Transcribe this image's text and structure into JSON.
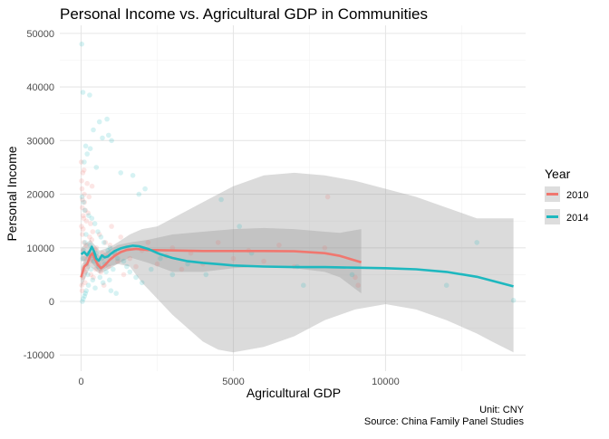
{
  "chart_data": {
    "type": "scatter",
    "title": "Personal Income vs. Agricultural GDP in Communities",
    "xlabel": "Agricultural GDP",
    "ylabel": "Personal Income",
    "xlim": [
      -700,
      14600
    ],
    "ylim": [
      -13000,
      51500
    ],
    "x_ticks": [
      0,
      5000,
      10000
    ],
    "x_tick_labels": [
      "0",
      "5000",
      "10000"
    ],
    "y_ticks": [
      -10000,
      0,
      10000,
      20000,
      30000,
      40000,
      50000
    ],
    "y_tick_labels": [
      "-10000",
      "0",
      "10000",
      "20000",
      "30000",
      "40000",
      "50000"
    ],
    "grid": true,
    "legend": {
      "title": "Year",
      "position": "right",
      "entries": [
        "2010",
        "2014"
      ]
    },
    "caption": [
      "Unit: CNY",
      "Source: China Family Panel Studies"
    ],
    "series": [
      {
        "name": "2010",
        "color": "#f0776f",
        "points": [
          [
            20,
            3000
          ],
          [
            50,
            4500
          ],
          [
            80,
            6000
          ],
          [
            100,
            8000
          ],
          [
            120,
            5500
          ],
          [
            150,
            7000
          ],
          [
            30,
            2000
          ],
          [
            60,
            9500
          ],
          [
            90,
            11000
          ],
          [
            40,
            12500
          ],
          [
            10,
            14000
          ],
          [
            70,
            16000
          ],
          [
            110,
            18500
          ],
          [
            25,
            21000
          ],
          [
            55,
            24000
          ],
          [
            130,
            3500
          ],
          [
            160,
            10500
          ],
          [
            190,
            8500
          ],
          [
            220,
            6500
          ],
          [
            250,
            9000
          ],
          [
            280,
            12000
          ],
          [
            300,
            7500
          ],
          [
            320,
            5000
          ],
          [
            350,
            11500
          ],
          [
            380,
            13000
          ],
          [
            400,
            4500
          ],
          [
            420,
            8000
          ],
          [
            450,
            9500
          ],
          [
            480,
            6000
          ],
          [
            500,
            10000
          ],
          [
            550,
            7000
          ],
          [
            600,
            12500
          ],
          [
            650,
            5500
          ],
          [
            700,
            9000
          ],
          [
            750,
            3000
          ],
          [
            800,
            11000
          ],
          [
            850,
            8500
          ],
          [
            900,
            6500
          ],
          [
            950,
            10500
          ],
          [
            1000,
            14000
          ],
          [
            1100,
            9000
          ],
          [
            1200,
            7500
          ],
          [
            1300,
            12000
          ],
          [
            1400,
            5000
          ],
          [
            1500,
            10000
          ],
          [
            1600,
            8000
          ],
          [
            1800,
            6500
          ],
          [
            2000,
            9500
          ],
          [
            2200,
            11000
          ],
          [
            2500,
            7000
          ],
          [
            2800,
            8500
          ],
          [
            3000,
            10000
          ],
          [
            3300,
            6000
          ],
          [
            3600,
            9000
          ],
          [
            4000,
            7000
          ],
          [
            4500,
            11000
          ],
          [
            5000,
            8000
          ],
          [
            5500,
            9500
          ],
          [
            6000,
            7500
          ],
          [
            6500,
            10500
          ],
          [
            7000,
            6500
          ],
          [
            8000,
            10000
          ],
          [
            8100,
            19500
          ],
          [
            9000,
            4500
          ],
          [
            9100,
            3000
          ],
          [
            5,
            26000
          ],
          [
            15,
            22500
          ],
          [
            35,
            17500
          ],
          [
            45,
            19000
          ],
          [
            65,
            13500
          ],
          [
            85,
            15500
          ],
          [
            95,
            24500
          ],
          [
            105,
            20000
          ],
          [
            140,
            17000
          ],
          [
            175,
            15000
          ],
          [
            200,
            22000
          ],
          [
            230,
            16500
          ],
          [
            260,
            19500
          ],
          [
            310,
            14500
          ],
          [
            360,
            21500
          ]
        ],
        "smooth": [
          [
            0,
            4500
          ],
          [
            100,
            6500
          ],
          [
            200,
            7000
          ],
          [
            300,
            8500
          ],
          [
            380,
            9000
          ],
          [
            450,
            8000
          ],
          [
            550,
            6800
          ],
          [
            650,
            6200
          ],
          [
            750,
            6600
          ],
          [
            850,
            7200
          ],
          [
            950,
            7800
          ],
          [
            1100,
            8500
          ],
          [
            1300,
            9200
          ],
          [
            1500,
            9600
          ],
          [
            1800,
            9800
          ],
          [
            2200,
            9600
          ],
          [
            3000,
            9500
          ],
          [
            4000,
            9400
          ],
          [
            5000,
            9400
          ],
          [
            6000,
            9400
          ],
          [
            7000,
            9350
          ],
          [
            8000,
            9000
          ],
          [
            8500,
            8500
          ],
          [
            9200,
            7300
          ]
        ],
        "band_upper": [
          [
            0,
            6500
          ],
          [
            300,
            10000
          ],
          [
            600,
            8500
          ],
          [
            900,
            9500
          ],
          [
            1200,
            10500
          ],
          [
            1600,
            11000
          ],
          [
            2200,
            11500
          ],
          [
            3000,
            12500
          ],
          [
            4000,
            13000
          ],
          [
            5000,
            13500
          ],
          [
            6000,
            13700
          ],
          [
            7000,
            13500
          ],
          [
            8000,
            13000
          ],
          [
            8500,
            12800
          ],
          [
            9200,
            13500
          ]
        ],
        "band_lower": [
          [
            9200,
            1500
          ],
          [
            8500,
            4500
          ],
          [
            8000,
            5500
          ],
          [
            7000,
            6200
          ],
          [
            6000,
            6500
          ],
          [
            5000,
            6200
          ],
          [
            4000,
            5500
          ],
          [
            3000,
            5500
          ],
          [
            2200,
            7200
          ],
          [
            1600,
            8200
          ],
          [
            1200,
            7000
          ],
          [
            900,
            6000
          ],
          [
            600,
            5200
          ],
          [
            300,
            6500
          ],
          [
            0,
            2500
          ]
        ]
      },
      {
        "name": "2014",
        "color": "#1eb8bf",
        "points": [
          [
            20,
            48000
          ],
          [
            60,
            39000
          ],
          [
            280,
            38500
          ],
          [
            850,
            34000
          ],
          [
            600,
            33500
          ],
          [
            400,
            32000
          ],
          [
            900,
            31000
          ],
          [
            700,
            30500
          ],
          [
            150,
            29000
          ],
          [
            300,
            28500
          ],
          [
            1000,
            30000
          ],
          [
            200,
            27500
          ],
          [
            100,
            26000
          ],
          [
            500,
            25000
          ],
          [
            1300,
            24000
          ],
          [
            1700,
            23500
          ],
          [
            2100,
            21000
          ],
          [
            1900,
            20000
          ],
          [
            30,
            19500
          ],
          [
            80,
            18500
          ],
          [
            120,
            17000
          ],
          [
            250,
            16000
          ],
          [
            350,
            15500
          ],
          [
            450,
            14500
          ],
          [
            550,
            13000
          ],
          [
            650,
            12000
          ],
          [
            750,
            11000
          ],
          [
            950,
            10000
          ],
          [
            1100,
            9000
          ],
          [
            1200,
            8000
          ],
          [
            1400,
            7500
          ],
          [
            1500,
            6500
          ],
          [
            1600,
            5500
          ],
          [
            1800,
            4500
          ],
          [
            2000,
            3500
          ],
          [
            2300,
            6000
          ],
          [
            2600,
            8000
          ],
          [
            3000,
            5000
          ],
          [
            3500,
            7000
          ],
          [
            4100,
            5000
          ],
          [
            4600,
            19000
          ],
          [
            5200,
            14000
          ],
          [
            5600,
            9000
          ],
          [
            7100,
            6500
          ],
          [
            7300,
            3000
          ],
          [
            8900,
            5000
          ],
          [
            12000,
            3000
          ],
          [
            13000,
            11000
          ],
          [
            14200,
            200
          ],
          [
            40,
            0
          ],
          [
            70,
            500
          ],
          [
            110,
            1000
          ],
          [
            140,
            1500
          ],
          [
            170,
            2000
          ],
          [
            50,
            8000
          ],
          [
            90,
            9500
          ],
          [
            130,
            11000
          ],
          [
            160,
            12500
          ],
          [
            190,
            7000
          ],
          [
            220,
            5000
          ],
          [
            240,
            3000
          ],
          [
            260,
            9000
          ],
          [
            290,
            10500
          ],
          [
            320,
            6000
          ],
          [
            340,
            8500
          ],
          [
            380,
            4000
          ],
          [
            420,
            7500
          ],
          [
            460,
            2500
          ],
          [
            500,
            9000
          ],
          [
            580,
            6500
          ],
          [
            620,
            4500
          ],
          [
            680,
            8000
          ],
          [
            720,
            3500
          ],
          [
            780,
            7000
          ],
          [
            820,
            5500
          ],
          [
            880,
            9500
          ],
          [
            930,
            4000
          ],
          [
            980,
            2000
          ],
          [
            1050,
            6000
          ],
          [
            1150,
            1500
          ]
        ],
        "smooth": [
          [
            0,
            8800
          ],
          [
            100,
            9200
          ],
          [
            200,
            8600
          ],
          [
            300,
            9600
          ],
          [
            350,
            10200
          ],
          [
            420,
            9400
          ],
          [
            500,
            8000
          ],
          [
            580,
            7600
          ],
          [
            680,
            8600
          ],
          [
            780,
            8200
          ],
          [
            880,
            8400
          ],
          [
            980,
            8900
          ],
          [
            1100,
            9400
          ],
          [
            1300,
            9900
          ],
          [
            1500,
            10200
          ],
          [
            1700,
            10400
          ],
          [
            1900,
            10300
          ],
          [
            2200,
            9800
          ],
          [
            2600,
            8800
          ],
          [
            3000,
            8100
          ],
          [
            3500,
            7500
          ],
          [
            4000,
            7200
          ],
          [
            4600,
            6900
          ],
          [
            5000,
            6700
          ],
          [
            6000,
            6500
          ],
          [
            7000,
            6400
          ],
          [
            8000,
            6400
          ],
          [
            9000,
            6300
          ],
          [
            10000,
            6200
          ],
          [
            11000,
            6000
          ],
          [
            12000,
            5500
          ],
          [
            13000,
            4600
          ],
          [
            14200,
            2800
          ]
        ],
        "band_upper": [
          [
            0,
            10000
          ],
          [
            300,
            11500
          ],
          [
            600,
            9500
          ],
          [
            900,
            10000
          ],
          [
            1200,
            11000
          ],
          [
            1600,
            12500
          ],
          [
            2000,
            13500
          ],
          [
            2500,
            14000
          ],
          [
            3000,
            15500
          ],
          [
            4000,
            18500
          ],
          [
            5000,
            21500
          ],
          [
            6000,
            23500
          ],
          [
            7000,
            24000
          ],
          [
            8000,
            23500
          ],
          [
            9000,
            22500
          ],
          [
            10000,
            21000
          ],
          [
            11000,
            19500
          ],
          [
            12000,
            17500
          ],
          [
            13000,
            15500
          ],
          [
            14200,
            15500
          ]
        ],
        "band_lower": [
          [
            14200,
            -9500
          ],
          [
            13500,
            -7500
          ],
          [
            13000,
            -6000
          ],
          [
            12000,
            -3500
          ],
          [
            11000,
            -1500
          ],
          [
            10000,
            -500
          ],
          [
            9000,
            -1500
          ],
          [
            8000,
            -3500
          ],
          [
            7000,
            -6500
          ],
          [
            6000,
            -8500
          ],
          [
            5000,
            -9500
          ],
          [
            4500,
            -9000
          ],
          [
            4000,
            -7500
          ],
          [
            3500,
            -5000
          ],
          [
            3000,
            -2500
          ],
          [
            2500,
            500
          ],
          [
            2000,
            3500
          ],
          [
            1600,
            6500
          ],
          [
            1200,
            7000
          ],
          [
            900,
            6500
          ],
          [
            600,
            5500
          ],
          [
            300,
            7500
          ],
          [
            0,
            7500
          ]
        ]
      }
    ]
  }
}
